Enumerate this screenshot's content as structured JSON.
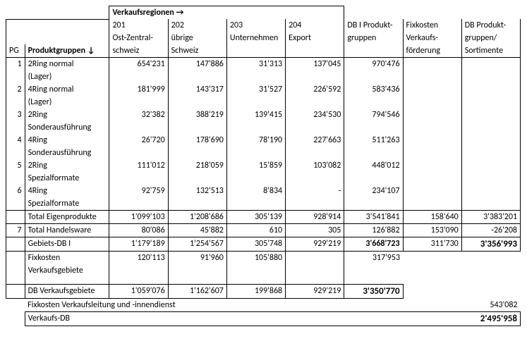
{
  "header": {
    "regions_label": "Verkaufsregionen →",
    "pg_col": "PG",
    "groups_col": "Produktgruppen ↓",
    "cols": [
      {
        "code": "201",
        "name1": "Ost-Zentral-",
        "name2": "schweiz"
      },
      {
        "code": "202",
        "name1": "übrige",
        "name2": "Schweiz"
      },
      {
        "code": "203",
        "name1": "Unternehmen",
        "name2": ""
      },
      {
        "code": "204",
        "name1": "Export",
        "name2": ""
      }
    ],
    "sum_cols": [
      {
        "l1": "DB I Produkt-",
        "l2": "gruppen",
        "l3": ""
      },
      {
        "l1": "Fixkosten",
        "l2": "Verkaufs-",
        "l3": "förderung"
      },
      {
        "l1": "DB Produkt-",
        "l2": "gruppen/",
        "l3": "Sortimente"
      }
    ]
  },
  "rows": [
    {
      "pg": "1",
      "label1": "2Ring normal",
      "label2": "(Lager)",
      "v": [
        "654'231",
        "147'886",
        "31'313",
        "137'045",
        "970'476",
        "",
        ""
      ]
    },
    {
      "pg": "2",
      "label1": "4Ring normal",
      "label2": "(Lager)",
      "v": [
        "181'999",
        "143'317",
        "31'527",
        "226'592",
        "583'436",
        "",
        ""
      ]
    },
    {
      "pg": "3",
      "label1": "2Ring",
      "label2": "Sonderausführung",
      "v": [
        "32'382",
        "388'219",
        "139'415",
        "234'530",
        "794'546",
        "",
        ""
      ]
    },
    {
      "pg": "4",
      "label1": "4Ring",
      "label2": "Sonderausführung",
      "v": [
        "26'720",
        "178'690",
        "78'190",
        "227'663",
        "511'263",
        "",
        ""
      ]
    },
    {
      "pg": "5",
      "label1": "2Ring",
      "label2": "Spezialformate",
      "v": [
        "111'012",
        "218'059",
        "15'859",
        "103'082",
        "448'012",
        "",
        ""
      ]
    },
    {
      "pg": "6",
      "label1": "4Ring",
      "label2": "Spezialformate",
      "v": [
        "92'759",
        "132'513",
        "8'834",
        "-",
        "234'107",
        "",
        ""
      ]
    }
  ],
  "totals": {
    "eigen": {
      "pg": "",
      "label": "Total Eigenprodukte",
      "v": [
        "1'099'103",
        "1'208'686",
        "305'139",
        "928'914",
        "3'541'841",
        "158'640",
        "3'383'201"
      ]
    },
    "handel": {
      "pg": "7",
      "label": "Total Handelsware",
      "v": [
        "80'086",
        "45'882",
        "610",
        "305",
        "126'882",
        "153'090",
        "-26'208"
      ]
    },
    "gebiets": {
      "label": "Gebiets-DB I",
      "v": [
        "1'179'189",
        "1'254'567",
        "305'748",
        "929'219",
        "3'668'723",
        "311'730",
        "3'356'993"
      ]
    },
    "fixkosten_vg": {
      "label1": "Fixkosten",
      "label2": "Verkaufsgebiete",
      "v": [
        "120'113",
        "91'960",
        "105'880",
        "",
        "317'953",
        "",
        ""
      ]
    },
    "db_vg": {
      "label": "DB Verkaufsgebiete",
      "v": [
        "1'059'076",
        "1'162'607",
        "199'868",
        "929'219",
        "3'350'770",
        "",
        ""
      ]
    },
    "fixkosten_vl": {
      "label": "Fixkosten Verkaufsleitung und -innendienst",
      "val": "543'082"
    },
    "verkaufs_db": {
      "label": "Verkaufs-DB",
      "val": "2'495'958"
    }
  }
}
